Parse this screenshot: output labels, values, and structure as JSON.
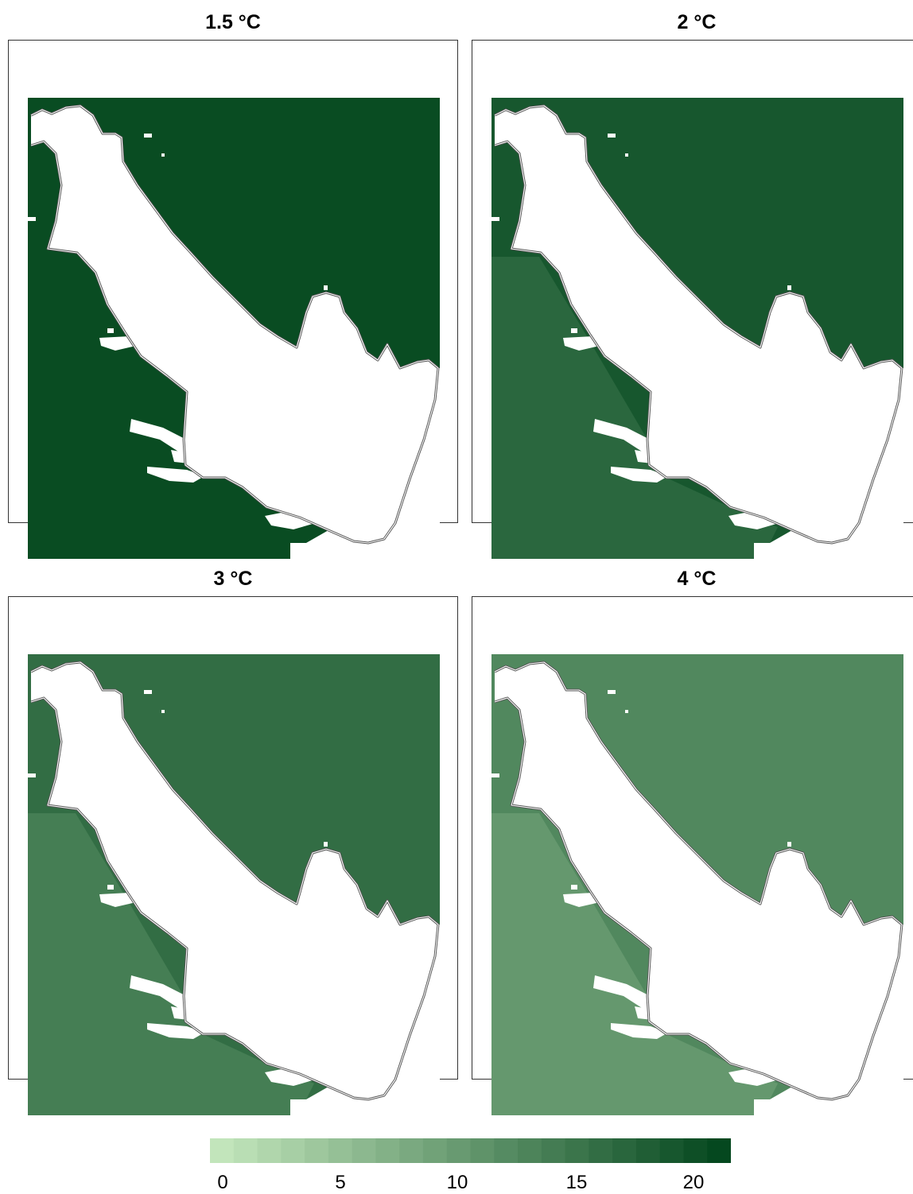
{
  "panels": [
    {
      "title": "1.5 °C",
      "shade": 21
    },
    {
      "title": "2 °C",
      "shade": 19.5
    },
    {
      "title": "3 °C",
      "shade": 16.5
    },
    {
      "title": "4 °C",
      "shade": 13
    }
  ],
  "legend": {
    "min": 0,
    "max": 22,
    "step": 1,
    "ticks": [
      "0",
      "5",
      "10",
      "15",
      "20"
    ]
  },
  "colors": {
    "ramp_light": "#c6e9bf",
    "ramp_dark": "#00441b",
    "water": "#ffffff",
    "coast": "#555555"
  }
}
